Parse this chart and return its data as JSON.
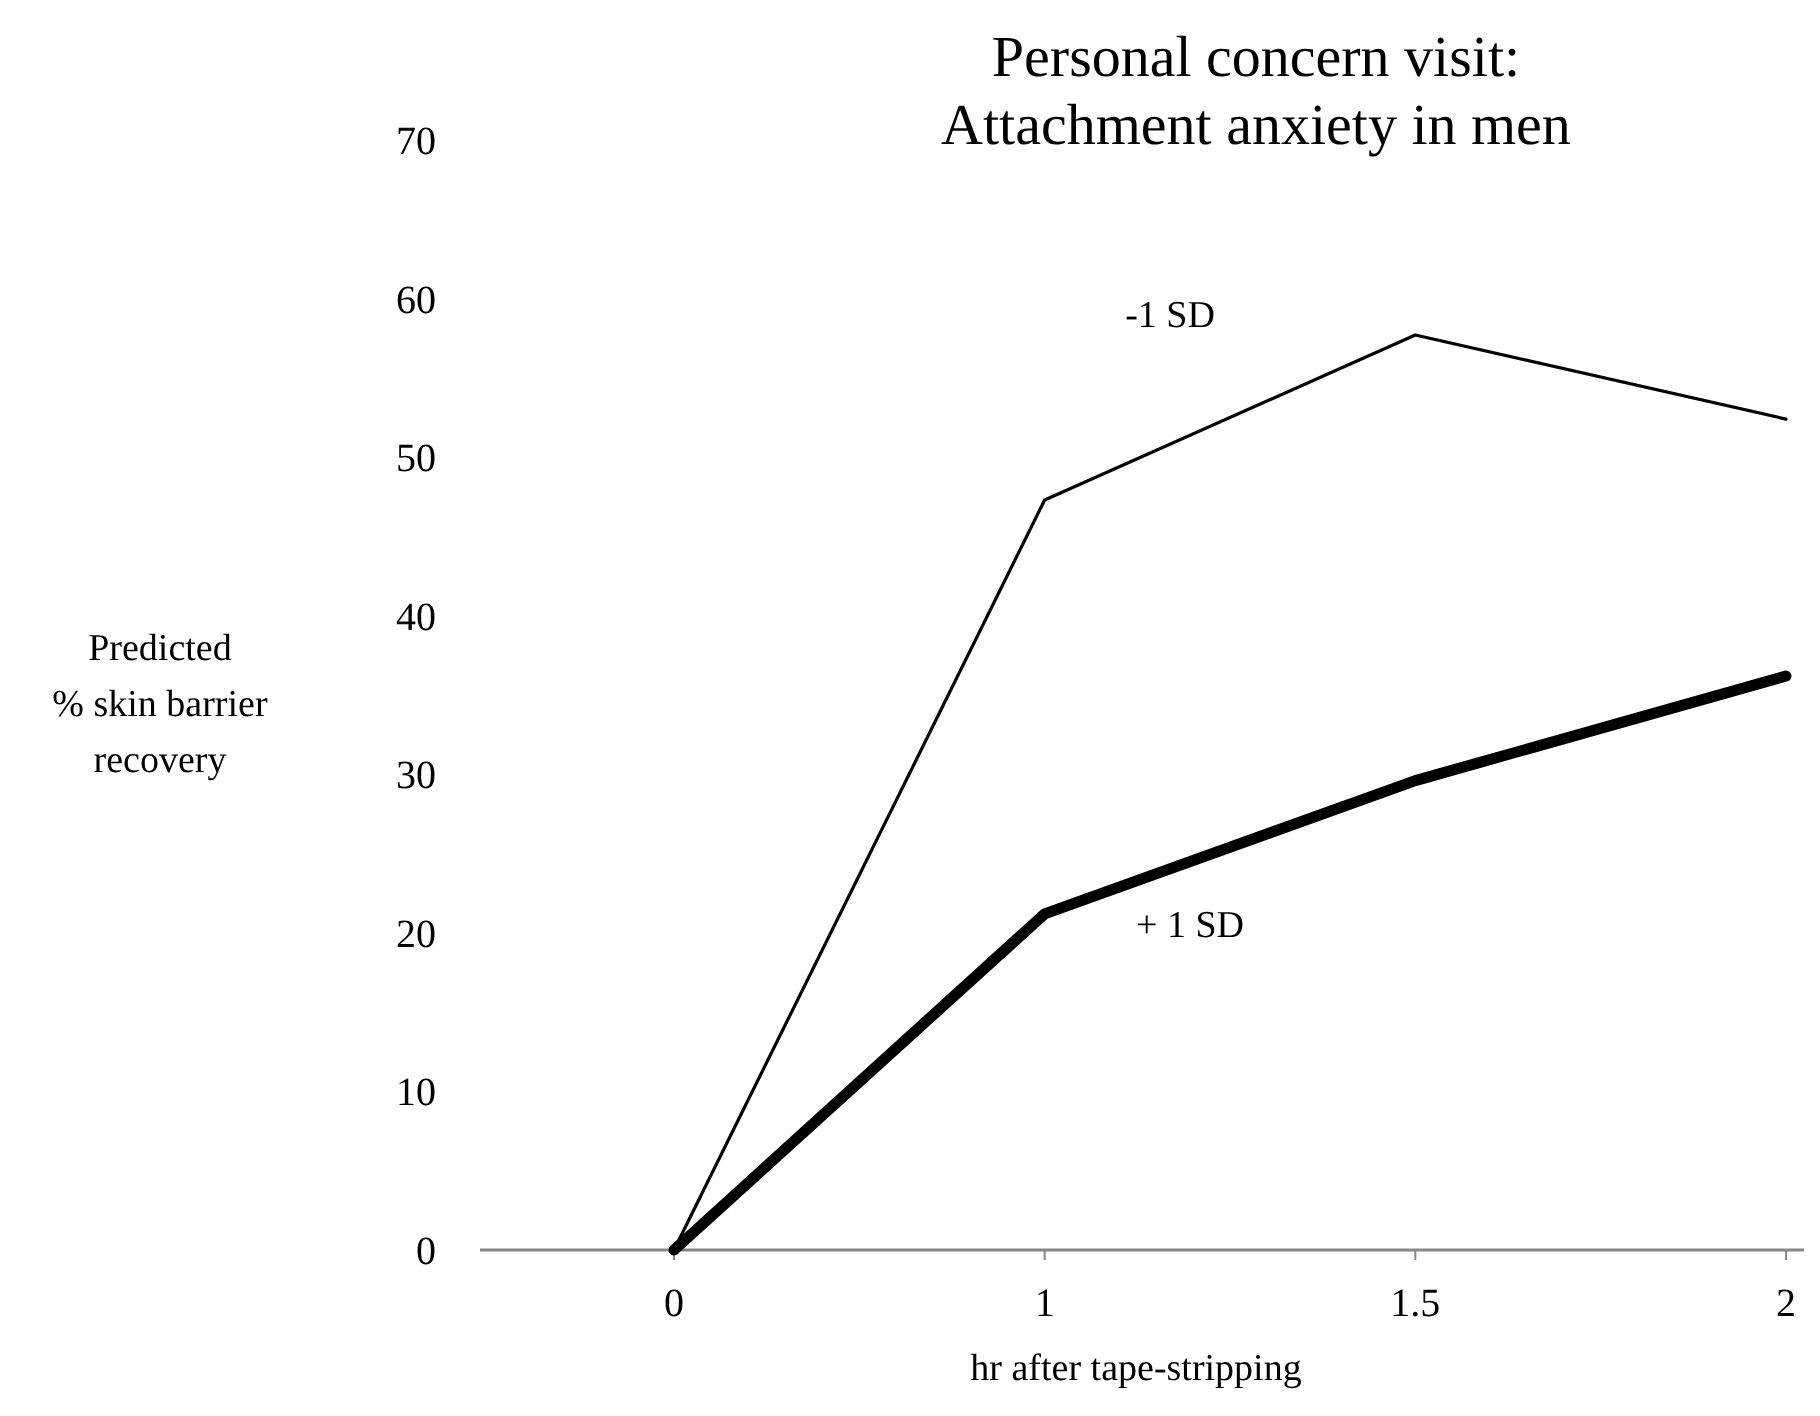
{
  "chart_data": {
    "type": "line",
    "title": "Personal concern visit:\nAttachment anxiety in men",
    "xlabel": "hr after tape-stripping",
    "ylabel": "Predicted\n% skin barrier\nrecovery",
    "categories": [
      "0",
      "1",
      "1.5",
      "2"
    ],
    "ylim": [
      0,
      70
    ],
    "yticks": [
      0,
      10,
      20,
      30,
      40,
      50,
      60,
      70
    ],
    "grid": false,
    "marker": "none",
    "line_style": "solid",
    "series": [
      {
        "name": "-1 SD",
        "color": "#000000",
        "values": [
          0,
          47.3,
          57.7,
          52.4
        ]
      },
      {
        "name": "+ 1 SD",
        "color": "#000000",
        "values": [
          0,
          21.2,
          29.6,
          36.2
        ]
      }
    ]
  }
}
